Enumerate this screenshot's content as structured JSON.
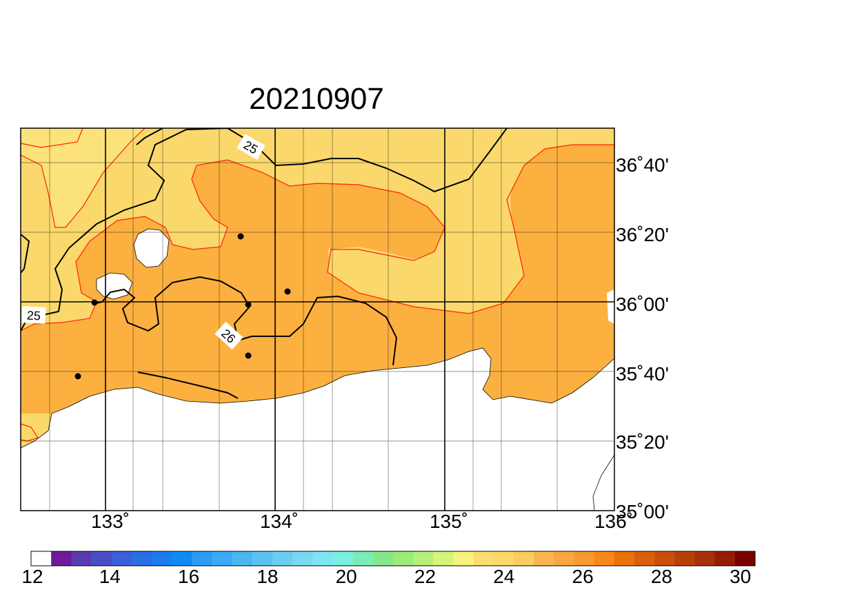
{
  "title": "20210907",
  "lat_labels": [
    "36˚40'",
    "36˚20'",
    "36˚00'",
    "35˚40'",
    "35˚20'",
    "35˚00'"
  ],
  "lon_labels": [
    "133˚",
    "134˚",
    "135˚",
    "136˚"
  ],
  "contour_labels": [
    "25",
    "25",
    "26"
  ],
  "colorbar": {
    "tick_labels": [
      "12",
      "14",
      "16",
      "18",
      "20",
      "22",
      "24",
      "26",
      "28",
      "30"
    ],
    "colors": [
      "#ffffff",
      "#6f1a9a",
      "#5a3cb0",
      "#4a4ec6",
      "#3a5fd6",
      "#2a6ee2",
      "#1b7cec",
      "#0f8af4",
      "#2a9cf6",
      "#3aaaf4",
      "#4ab6f2",
      "#5ac2f2",
      "#6acef2",
      "#7ad8f2",
      "#7ee6f2",
      "#7af0e2",
      "#7aecb6",
      "#84e88a",
      "#9aec78",
      "#b6f07a",
      "#d4f47a",
      "#f6f47a",
      "#fadc70",
      "#fbd868",
      "#fbcc5e",
      "#f9b650",
      "#f8a640",
      "#f89a30",
      "#f8881a",
      "#e8720c",
      "#d8600a",
      "#c8500a",
      "#b84008",
      "#a83008",
      "#961c06",
      "#7a0000"
    ]
  },
  "colors": {
    "sst_24": "#fbdc6a",
    "sst_25": "#fbd86c",
    "sst_26": "#fbb040",
    "sst_23": "#d8f07a",
    "land": "#ffffff",
    "contour_red": "#ff2200",
    "contour_black": "#000000",
    "grid": "#000000"
  }
}
